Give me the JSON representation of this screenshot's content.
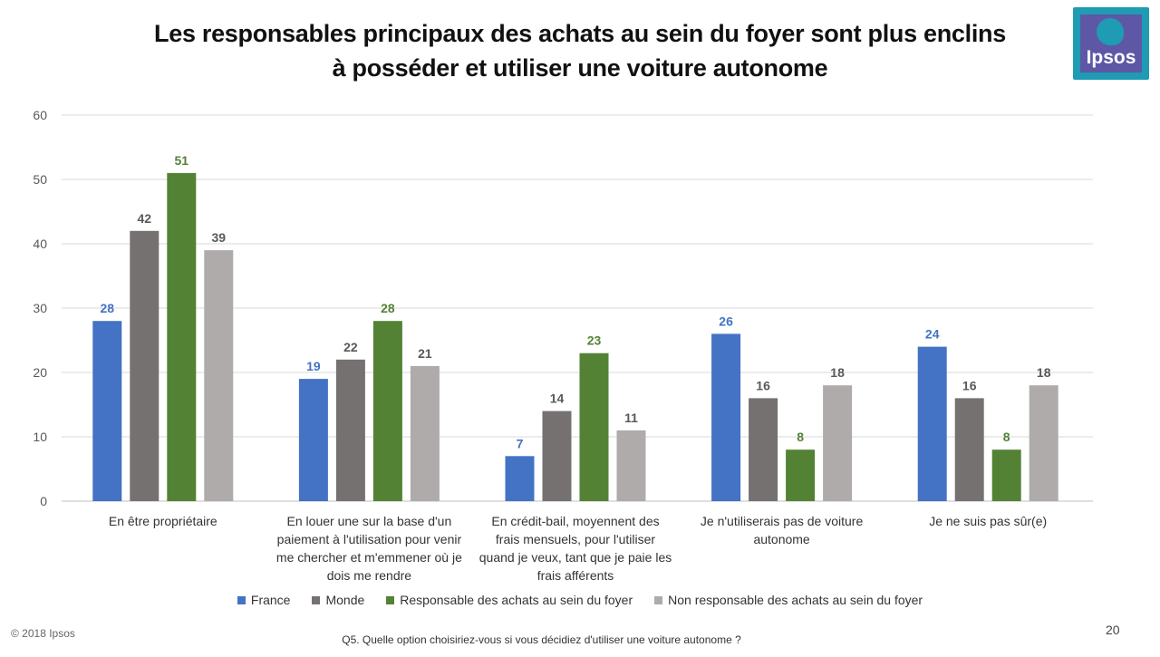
{
  "title_line1": "Les responsables principaux des achats au sein du foyer sont plus enclins",
  "title_line2": "à posséder et utiliser une voiture autonome",
  "logo_text": "Ipsos",
  "copyright": "© 2018 Ipsos",
  "question": "Q5. Quelle option choisiriez-vous si vous décidiez d'utiliser une voiture autonome ?",
  "page_number": "20",
  "chart_data": {
    "type": "bar",
    "title": "",
    "xlabel": "",
    "ylabel": "",
    "ylim": [
      0,
      60
    ],
    "yticks": [
      0,
      10,
      20,
      30,
      40,
      50,
      60
    ],
    "grid": true,
    "legend_position": "bottom",
    "categories": [
      [
        "En être propriétaire"
      ],
      [
        "En louer une sur la base d'un",
        "paiement à l'utilisation pour venir",
        "me chercher et m'emmener où je",
        "dois me rendre"
      ],
      [
        "En crédit-bail, moyennent des",
        "frais mensuels, pour l'utiliser",
        "quand je veux, tant que je paie les",
        "frais afférents"
      ],
      [
        "Je n'utiliserais pas de voiture",
        "autonome"
      ],
      [
        "Je ne suis pas sûr(e)"
      ]
    ],
    "series": [
      {
        "name": "France",
        "color": "#4472c4",
        "label_color": "#4472c4",
        "values": [
          28,
          19,
          7,
          26,
          24
        ]
      },
      {
        "name": "Monde",
        "color": "#767171",
        "label_color": "#595959",
        "values": [
          42,
          22,
          14,
          16,
          16
        ]
      },
      {
        "name": "Responsable des achats au sein du foyer",
        "color": "#548235",
        "label_color": "#548235",
        "values": [
          51,
          28,
          23,
          8,
          8
        ]
      },
      {
        "name": "Non responsable des achats au sein du foyer",
        "color": "#afabab",
        "label_color": "#595959",
        "values": [
          39,
          21,
          11,
          18,
          18
        ]
      }
    ]
  }
}
